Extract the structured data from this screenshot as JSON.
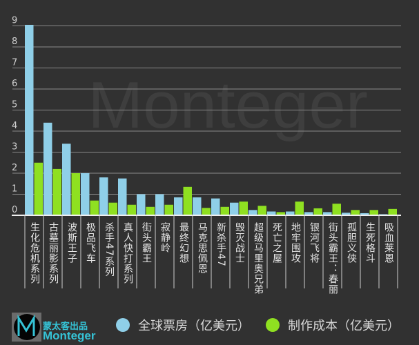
{
  "chart_data": {
    "type": "bar",
    "title": "",
    "xlabel": "",
    "ylabel": "",
    "ylim": [
      0,
      9
    ],
    "yticks": [
      0,
      1,
      2,
      3,
      4,
      5,
      6,
      7,
      8,
      9
    ],
    "grid": true,
    "legend_placement": "bottom",
    "categories": [
      "生化危机系列",
      "古墓丽影系列",
      "波斯王子",
      "极品飞车",
      "杀手47系列",
      "真人快打系列",
      "街头霸王",
      "寂静岭",
      "最终幻想",
      "马克思佩恩",
      "新杀手47",
      "毁灭战士",
      "超级马里奥兄弟",
      "死亡之屋",
      "地牢围攻",
      "银河飞将",
      "街头霸王：春丽",
      "孤胆义侠",
      "生死格斗",
      "吸血莱恩"
    ],
    "series": [
      {
        "name": "全球票房（亿美元）",
        "color": "#8fcfe8",
        "values": [
          9.05,
          4.4,
          3.4,
          2.0,
          1.8,
          1.75,
          1.0,
          1.0,
          0.85,
          0.85,
          0.8,
          0.6,
          0.25,
          0.18,
          0.18,
          0.15,
          0.15,
          0.12,
          0.1,
          0.05
        ]
      },
      {
        "name": "制作成本（亿美元）",
        "color": "#8fe021",
        "values": [
          2.5,
          2.2,
          2.0,
          0.7,
          0.6,
          0.5,
          0.4,
          0.5,
          1.35,
          0.35,
          0.4,
          0.65,
          0.45,
          0.15,
          0.65,
          0.33,
          0.55,
          0.25,
          0.25,
          0.3
        ]
      }
    ]
  },
  "watermark": "Monteger",
  "brand": {
    "line1": "蒙太客出品",
    "line2": "Monteger"
  }
}
